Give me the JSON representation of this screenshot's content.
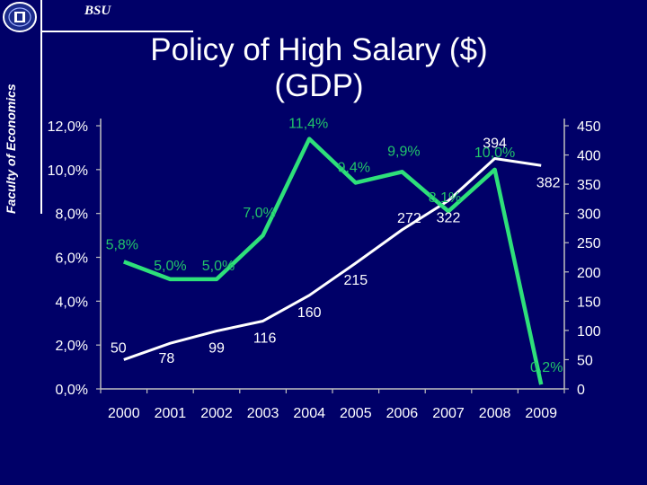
{
  "header": {
    "org": "BSU",
    "faculty": "Faculty of Economics",
    "title_line1": "Policy of High Salary ($)",
    "title_line2": "(GDP)"
  },
  "colors": {
    "background": "#000068",
    "salary_line": "#ffffff",
    "gdp_line": "#2ee07a",
    "gdp_label": "#22c46a"
  },
  "chart_data": {
    "type": "line",
    "x": [
      "2000",
      "2001",
      "2002",
      "2003",
      "2004",
      "2005",
      "2006",
      "2007",
      "2008",
      "2009"
    ],
    "title": "",
    "xlabel": "",
    "ylabel": "",
    "grid": false,
    "legend": "none",
    "y_left": {
      "range": [
        0,
        12
      ],
      "ticks": [
        "0,0%",
        "2,0%",
        "4,0%",
        "6,0%",
        "8,0%",
        "10,0%",
        "12,0%"
      ]
    },
    "y_right": {
      "range": [
        0,
        450
      ],
      "ticks": [
        "0",
        "50",
        "100",
        "150",
        "200",
        "250",
        "300",
        "350",
        "400",
        "450"
      ]
    },
    "series": [
      {
        "axis": "right",
        "color": "#ffffff",
        "values": [
          50,
          78,
          99,
          116,
          160,
          215,
          272,
          322,
          394,
          382
        ],
        "labels": [
          "50",
          "78",
          "99",
          "116",
          "160",
          "215",
          "272",
          "322",
          "394",
          "382"
        ]
      },
      {
        "axis": "left",
        "color": "#2ee07a",
        "values": [
          5.8,
          5.0,
          5.0,
          7.0,
          11.4,
          9.4,
          9.9,
          8.1,
          10.0,
          0.2
        ],
        "labels": [
          "5,8%",
          "5,0%",
          "5,0%",
          "7,0%",
          "11,4%",
          "9,4%",
          "9,9%",
          "8,1%",
          "10,0%",
          "0,2%"
        ]
      }
    ]
  }
}
